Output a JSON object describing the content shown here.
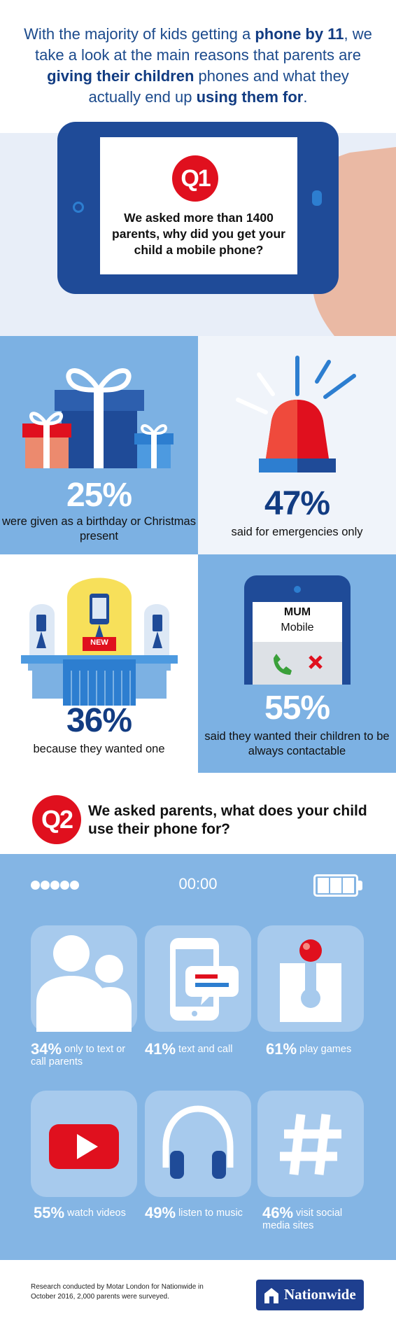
{
  "header": {
    "part1": "With the majority of kids getting a ",
    "bold1": "phone by 11",
    "part2": ", we take a look at the main reasons that parents are ",
    "bold2": "giving their children",
    "part3": " phones and what they actually end up ",
    "bold3": "using them for",
    "part4": "."
  },
  "q1": {
    "badge": "Q1",
    "question": "We asked more than 1400 parents, why did you get your child a mobile phone?"
  },
  "reasons": [
    {
      "percent": "25%",
      "caption": "were given as a birthday or Christmas present",
      "icon": "gift-boxes-icon"
    },
    {
      "percent": "47%",
      "caption": "said for emergencies only",
      "icon": "siren-icon"
    },
    {
      "percent": "36%",
      "caption": "because they wanted one",
      "icon": "new-phone-display-icon",
      "badge": "NEW"
    },
    {
      "percent": "55%",
      "caption": "said they wanted their children to be always contactable",
      "icon": "incoming-call-icon",
      "call_name": "MUM",
      "call_sub": "Mobile"
    }
  ],
  "q2": {
    "badge": "Q2",
    "question": "We asked parents, what does your child use their phone for?"
  },
  "status_bar": {
    "time": "00:00",
    "signal_dots": 5,
    "battery_cells": 3
  },
  "usage": [
    {
      "percent": "34%",
      "label": "only to text or call parents",
      "icon": "parents-icon"
    },
    {
      "percent": "41%",
      "label": "text and call",
      "icon": "phone-message-icon"
    },
    {
      "percent": "61%",
      "label": "play games",
      "icon": "joystick-icon"
    },
    {
      "percent": "55%",
      "label": "watch videos",
      "icon": "video-play-icon"
    },
    {
      "percent": "49%",
      "label": "listen to music",
      "icon": "headphones-icon"
    },
    {
      "percent": "46%",
      "label": "visit social media sites",
      "icon": "hashtag-icon"
    }
  ],
  "footer": {
    "note": "Research conducted by Motar London for Nationwide in October 2016, 2,000 parents were surveyed.",
    "logo": "Nationwide"
  },
  "colors": {
    "navy": "#123c82",
    "red": "#e0101e",
    "light_blue": "#7cb1e3",
    "pale_blue": "#e8eef8"
  }
}
